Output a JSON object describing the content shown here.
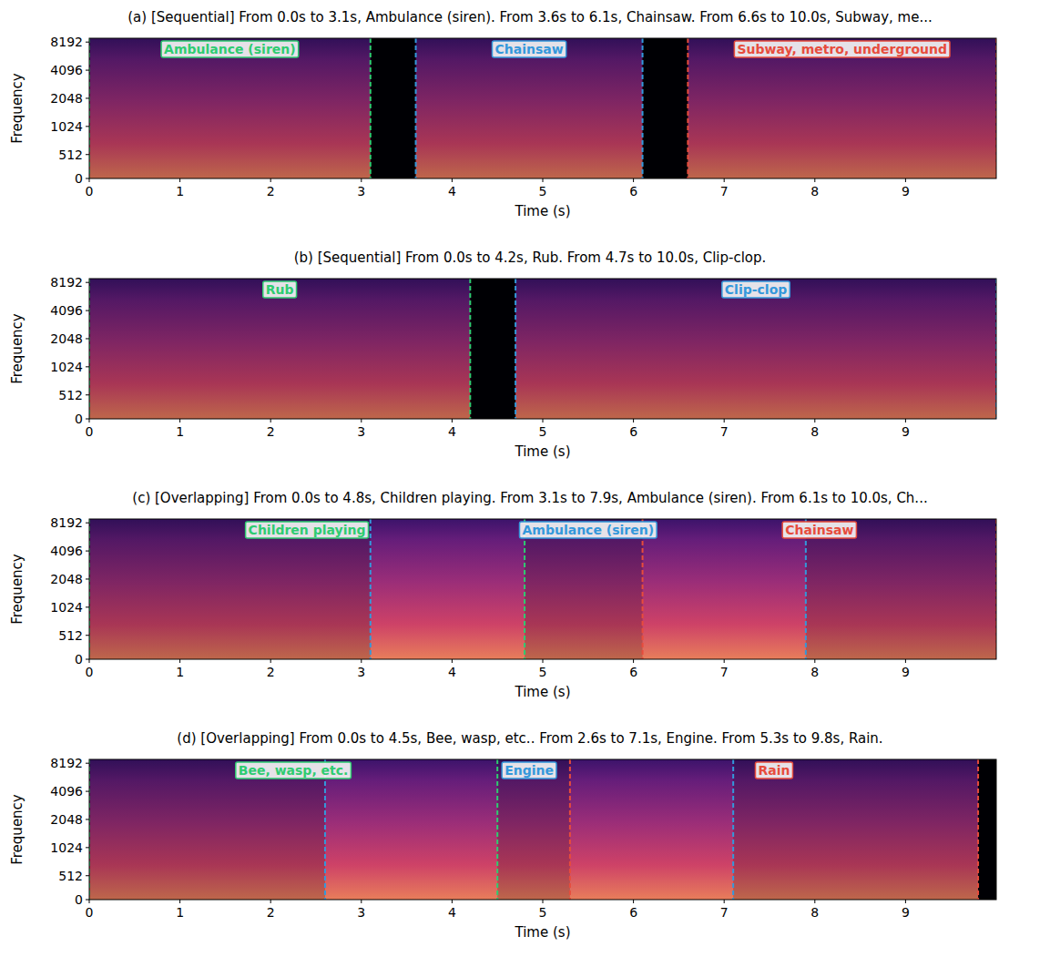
{
  "chart_data": [
    {
      "type": "spectrogram",
      "title": "(a) [Sequential] From 0.0s to 3.1s, Ambulance (siren). From 3.6s to 6.1s, Chainsaw. From 6.6s to 10.0s, Subway, me...",
      "x_label": "Time (s)",
      "y_label": "Frequency",
      "xlim": [
        0,
        10
      ],
      "xticks": [
        0,
        1,
        2,
        3,
        4,
        5,
        6,
        7,
        8,
        9
      ],
      "ylim": [
        0,
        9000
      ],
      "yticks": [
        0,
        512,
        1024,
        2048,
        4096,
        8192
      ],
      "log": "y",
      "segments": [
        {
          "name": "Ambulance (siren)",
          "start": 0.0,
          "end": 3.1,
          "color": "#2ecc71"
        },
        {
          "name": "Chainsaw",
          "start": 3.6,
          "end": 6.1,
          "color": "#3498db"
        },
        {
          "name": "Subway, metro, underground",
          "start": 6.6,
          "end": 10.0,
          "color": "#e74c3c"
        }
      ]
    },
    {
      "type": "spectrogram",
      "title": "(b) [Sequential] From 0.0s to 4.2s, Rub. From 4.7s to 10.0s, Clip-clop.",
      "x_label": "Time (s)",
      "y_label": "Frequency",
      "xlim": [
        0,
        10
      ],
      "xticks": [
        0,
        1,
        2,
        3,
        4,
        5,
        6,
        7,
        8,
        9
      ],
      "ylim": [
        0,
        9000
      ],
      "yticks": [
        0,
        512,
        1024,
        2048,
        4096,
        8192
      ],
      "log": "y",
      "segments": [
        {
          "name": "Rub",
          "start": 0.0,
          "end": 4.2,
          "color": "#2ecc71"
        },
        {
          "name": "Clip-clop",
          "start": 4.7,
          "end": 10.0,
          "color": "#3498db"
        }
      ]
    },
    {
      "type": "spectrogram",
      "title": "(c) [Overlapping] From 0.0s to 4.8s, Children playing. From 3.1s to 7.9s, Ambulance (siren). From 6.1s to 10.0s, Ch...",
      "x_label": "Time (s)",
      "y_label": "Frequency",
      "xlim": [
        0,
        10
      ],
      "xticks": [
        0,
        1,
        2,
        3,
        4,
        5,
        6,
        7,
        8,
        9
      ],
      "ylim": [
        0,
        9000
      ],
      "yticks": [
        0,
        512,
        1024,
        2048,
        4096,
        8192
      ],
      "log": "y",
      "segments": [
        {
          "name": "Children playing",
          "start": 0.0,
          "end": 4.8,
          "color": "#2ecc71"
        },
        {
          "name": "Ambulance (siren)",
          "start": 3.1,
          "end": 7.9,
          "color": "#3498db"
        },
        {
          "name": "Chainsaw",
          "start": 6.1,
          "end": 10.0,
          "color": "#e74c3c"
        }
      ]
    },
    {
      "type": "spectrogram",
      "title": "(d) [Overlapping] From 0.0s to 4.5s, Bee, wasp, etc.. From 2.6s to 7.1s, Engine. From 5.3s to 9.8s, Rain.",
      "x_label": "Time (s)",
      "y_label": "Frequency",
      "xlim": [
        0,
        10
      ],
      "xticks": [
        0,
        1,
        2,
        3,
        4,
        5,
        6,
        7,
        8,
        9
      ],
      "ylim": [
        0,
        9000
      ],
      "yticks": [
        0,
        512,
        1024,
        2048,
        4096,
        8192
      ],
      "log": "y",
      "segments": [
        {
          "name": "Bee, wasp, etc.",
          "start": 0.0,
          "end": 4.5,
          "color": "#2ecc71"
        },
        {
          "name": "Engine",
          "start": 2.6,
          "end": 7.1,
          "color": "#3498db"
        },
        {
          "name": "Rain",
          "start": 5.3,
          "end": 9.8,
          "color": "#e74c3c"
        }
      ]
    }
  ]
}
